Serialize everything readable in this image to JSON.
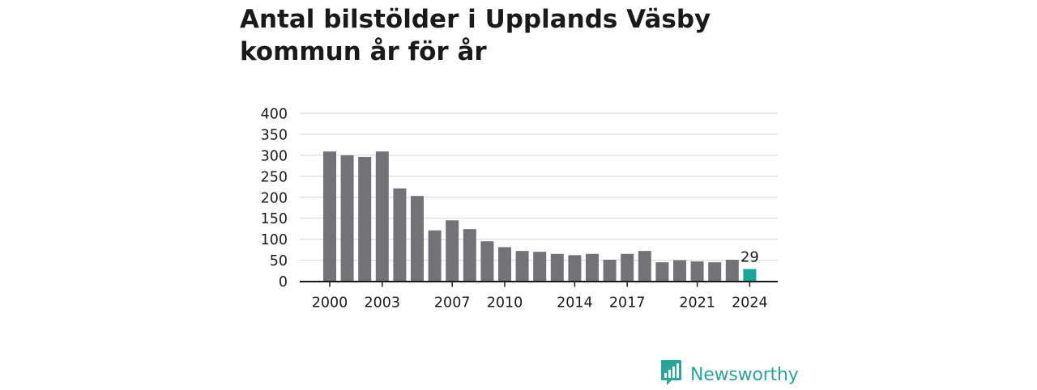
{
  "chart_data": {
    "type": "bar",
    "title": "Antal bilstölder i Upplands Väsby kommun år för år",
    "xlabel": "",
    "ylabel": "",
    "ylim": [
      0,
      400
    ],
    "yticks": [
      0,
      50,
      100,
      150,
      200,
      250,
      300,
      350,
      400
    ],
    "x": [
      2000,
      2001,
      2002,
      2003,
      2004,
      2005,
      2006,
      2007,
      2008,
      2009,
      2010,
      2011,
      2012,
      2013,
      2014,
      2015,
      2016,
      2017,
      2018,
      2019,
      2020,
      2021,
      2022,
      2023,
      2024
    ],
    "values": [
      309,
      300,
      296,
      309,
      221,
      203,
      121,
      145,
      124,
      95,
      81,
      72,
      70,
      65,
      62,
      65,
      51,
      65,
      72,
      45,
      50,
      47,
      45,
      51,
      29
    ],
    "xtick_labels": [
      "2000",
      "2003",
      "2007",
      "2010",
      "2014",
      "2017",
      "2021",
      "2024"
    ],
    "highlight": {
      "x": 2024,
      "label": "29"
    },
    "grid": true,
    "colors": {
      "bar": "#737277",
      "highlight": "#1aa59a",
      "grid": "#dcdcdc",
      "axis": "#1a1a1a"
    }
  },
  "brand": {
    "name": "Newsworthy",
    "icon": "newsworthy-logo-icon",
    "color": "#2aa59a"
  }
}
